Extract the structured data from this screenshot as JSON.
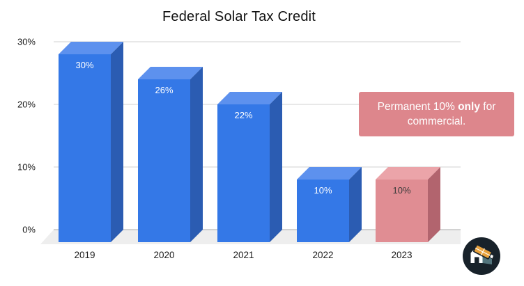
{
  "chart_data": {
    "type": "bar",
    "variant": "3d-column",
    "title": "Federal Solar Tax Credit",
    "categories": [
      "2019",
      "2020",
      "2021",
      "2022",
      "2023"
    ],
    "values": [
      30,
      26,
      22,
      10,
      10
    ],
    "bar_labels": [
      "30%",
      "26%",
      "22%",
      "10%",
      "10%"
    ],
    "bar_styles": [
      "blue",
      "blue",
      "blue",
      "blue",
      "pink"
    ],
    "label_colors": [
      "#ffffff",
      "#ffffff",
      "#ffffff",
      "#ffffff",
      "#3a3a3a"
    ],
    "highlight_index": 4,
    "xlabel": "",
    "ylabel": "",
    "ylim": [
      0,
      30
    ],
    "ytick_values": [
      0,
      10,
      20,
      30
    ],
    "ytick_labels": [
      "0%",
      "10%",
      "20%",
      "30%"
    ],
    "grid": true,
    "legend": "none",
    "colors": {
      "blue": {
        "front": "#3478e7",
        "top": "#5d91ee",
        "side": "#2b5cb2"
      },
      "pink": {
        "front": "#e08d93",
        "top": "#eba4a9",
        "side": "#b2646e"
      },
      "gridline": "#d0d0d0",
      "baseline": "#a9a9a9",
      "axis_text": "#1a1a1a",
      "floor": "#eeeeee"
    }
  },
  "callout": {
    "segments": [
      {
        "text": "Permanent 10% ",
        "bold": false
      },
      {
        "text": "only",
        "bold": true
      },
      {
        "text": " for commercial.",
        "bold": false
      }
    ],
    "bg_color": "#dd868c",
    "text_color": "#ffffff"
  },
  "logo": {
    "name": "solar-house-logo",
    "bg_color": "#18222a",
    "panel_color": "#e8a13c",
    "panel_gap_color": "#ffffff",
    "wall_color": "#53757d",
    "house_color": "#ffffff"
  }
}
